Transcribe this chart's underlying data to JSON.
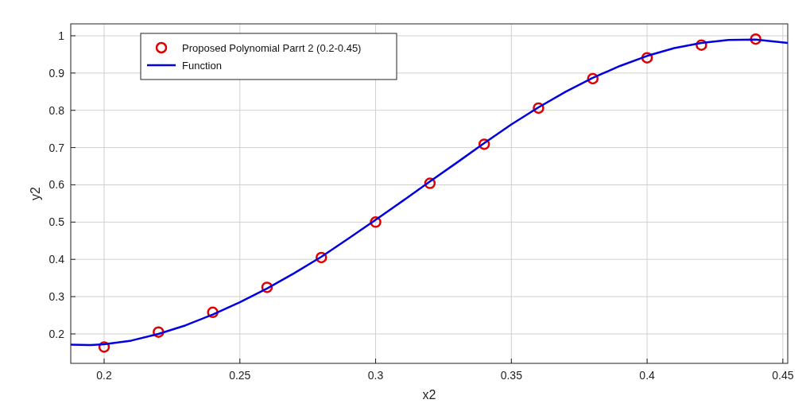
{
  "chart_data": {
    "type": "line",
    "xlabel": "x2",
    "ylabel": "y2",
    "xlim": [
      0.1877,
      0.4518
    ],
    "ylim": [
      0.121,
      1.032
    ],
    "xticks": [
      0.2,
      0.25,
      0.3,
      0.35,
      0.4,
      0.45
    ],
    "yticks": [
      0.2,
      0.3,
      0.4,
      0.5,
      0.6,
      0.7,
      0.8,
      0.9,
      1
    ],
    "grid": true,
    "legend": "top left",
    "series": [
      {
        "name": "Proposed Polynomial Parrt 2 (0.2-0.45)",
        "type": "scatter",
        "marker": "circle",
        "color": "#e00000",
        "x": [
          0.2,
          0.22,
          0.24,
          0.26,
          0.28,
          0.3,
          0.32,
          0.34,
          0.36,
          0.38,
          0.4,
          0.42,
          0.44
        ],
        "values": [
          0.165,
          0.205,
          0.258,
          0.325,
          0.405,
          0.5,
          0.604,
          0.709,
          0.806,
          0.885,
          0.941,
          0.975,
          0.991
        ]
      },
      {
        "name": "Function",
        "marker": "none",
        "color": "#0000e0",
        "x": [
          0.1877,
          0.195,
          0.2,
          0.21,
          0.22,
          0.23,
          0.24,
          0.25,
          0.26,
          0.27,
          0.28,
          0.29,
          0.3,
          0.31,
          0.32,
          0.33,
          0.34,
          0.35,
          0.36,
          0.37,
          0.38,
          0.39,
          0.4,
          0.41,
          0.42,
          0.43,
          0.44,
          0.4518
        ],
        "values": [
          0.171,
          0.17,
          0.172,
          0.182,
          0.2,
          0.223,
          0.252,
          0.285,
          0.322,
          0.363,
          0.407,
          0.456,
          0.506,
          0.557,
          0.609,
          0.66,
          0.712,
          0.762,
          0.808,
          0.85,
          0.887,
          0.919,
          0.946,
          0.967,
          0.981,
          0.989,
          0.99,
          0.981
        ]
      }
    ]
  }
}
